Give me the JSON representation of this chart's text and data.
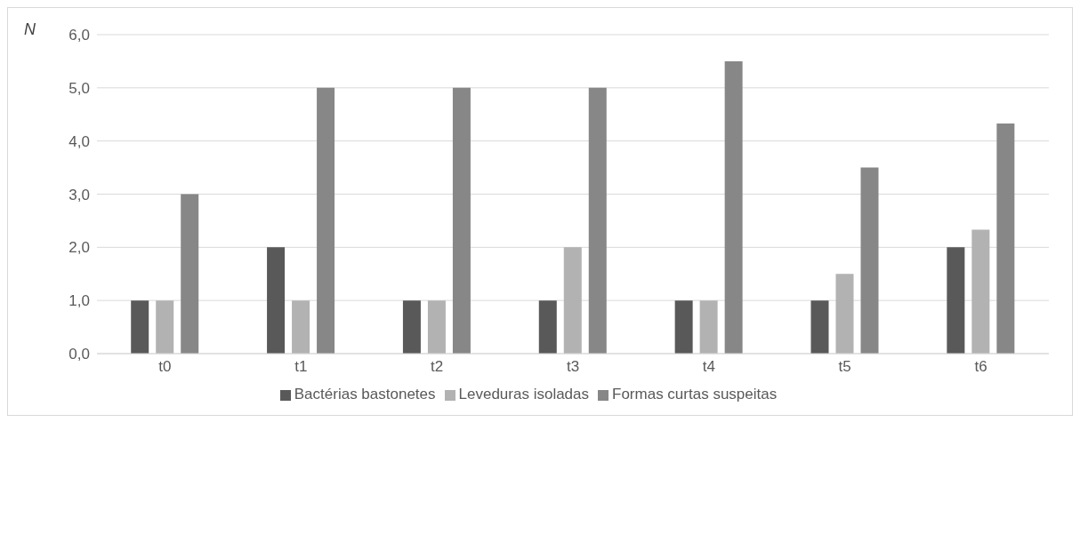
{
  "chart_data": {
    "type": "bar",
    "ylabel": "N",
    "categories": [
      "t0",
      "t1",
      "t2",
      "t3",
      "t4",
      "t5",
      "t6"
    ],
    "series": [
      {
        "name": "Bactérias bastonetes",
        "color": "#595959",
        "values": [
          1,
          2,
          1,
          1,
          1,
          1,
          2
        ]
      },
      {
        "name": "Leveduras isoladas",
        "color": "#b2b2b2",
        "values": [
          1,
          1,
          1,
          2,
          1,
          1.5,
          2.33
        ]
      },
      {
        "name": "Formas curtas suspeitas",
        "color": "#878787",
        "values": [
          3,
          5,
          5,
          5,
          5.5,
          3.5,
          4.33
        ]
      }
    ],
    "ylim": [
      0,
      6
    ],
    "yticks": [
      {
        "value": 0,
        "label": "0,0"
      },
      {
        "value": 1,
        "label": "1,0"
      },
      {
        "value": 2,
        "label": "2,0"
      },
      {
        "value": 3,
        "label": "3,0"
      },
      {
        "value": 4,
        "label": "4,0"
      },
      {
        "value": 5,
        "label": "5,0"
      },
      {
        "value": 6,
        "label": "6,0"
      }
    ],
    "grid": "y",
    "legend": "bottom"
  }
}
